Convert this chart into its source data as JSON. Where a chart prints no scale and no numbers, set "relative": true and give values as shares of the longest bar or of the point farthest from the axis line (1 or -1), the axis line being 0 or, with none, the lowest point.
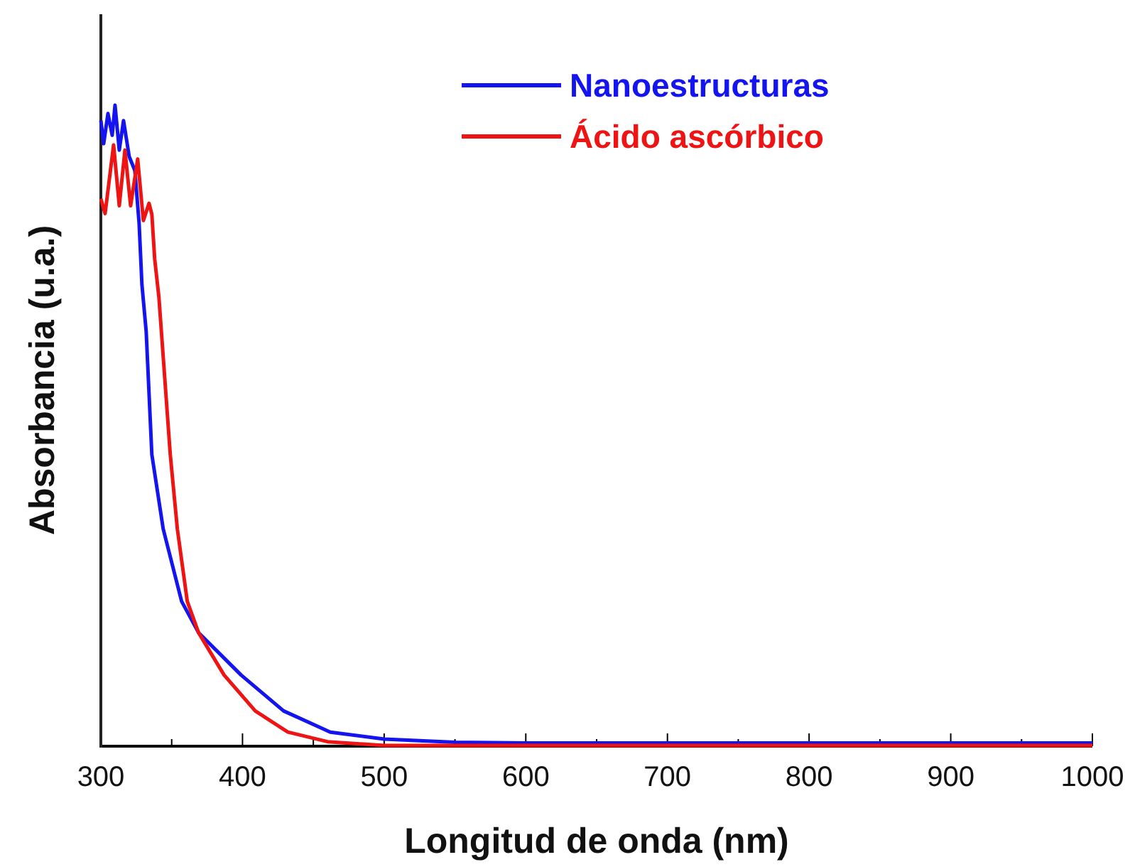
{
  "chart_data": {
    "type": "line",
    "xlabel": "Longitud de onda (nm)",
    "ylabel": "Absorbancia (u.a.)",
    "relative": true,
    "xlim": [
      300,
      1000
    ],
    "xticks": [
      300,
      {
        "value": 350,
        "label": null
      },
      400,
      {
        "value": 450,
        "label": null
      },
      500,
      {
        "value": 550,
        "label": null
      },
      600,
      {
        "value": 650,
        "label": null
      },
      700,
      {
        "value": 750,
        "label": null
      },
      800,
      {
        "value": 850,
        "label": null
      },
      900,
      {
        "value": 950,
        "label": null
      },
      1000
    ],
    "legend": "top right",
    "grid": false,
    "line_style": "solid",
    "marker": "none",
    "series": [
      {
        "name": "Nanoestructuras",
        "color": "#1414ee",
        "x": [
          300,
          302,
          305,
          308,
          310,
          313,
          316,
          320,
          324,
          327,
          329,
          332,
          336,
          344,
          357,
          369,
          399,
          429,
          462,
          500,
          550,
          600,
          700,
          800,
          900,
          1000
        ],
        "values": [
          0.976,
          0.94,
          0.987,
          0.953,
          1,
          0.93,
          0.976,
          0.92,
          0.898,
          0.816,
          0.72,
          0.647,
          0.455,
          0.339,
          0.226,
          0.177,
          0.111,
          0.055,
          0.022,
          0.011,
          0.006,
          0.005,
          0.005,
          0.005,
          0.005,
          0.005
        ]
      },
      {
        "name": "Ácido ascórbico",
        "color": "#ee1414",
        "x": [
          300,
          303,
          309,
          313,
          317,
          321,
          326,
          330,
          334,
          336,
          338,
          341,
          349,
          354,
          361,
          369,
          387,
          409,
          432,
          460,
          500,
          600,
          700,
          800,
          900,
          1000
        ],
        "values": [
          0.854,
          0.831,
          0.938,
          0.843,
          0.93,
          0.843,
          0.916,
          0.82,
          0.847,
          0.83,
          0.76,
          0.7,
          0.455,
          0.339,
          0.226,
          0.177,
          0.111,
          0.055,
          0.022,
          0.007,
          0.001,
          0.001,
          0.001,
          0.001,
          0.001,
          0.001
        ]
      }
    ]
  }
}
